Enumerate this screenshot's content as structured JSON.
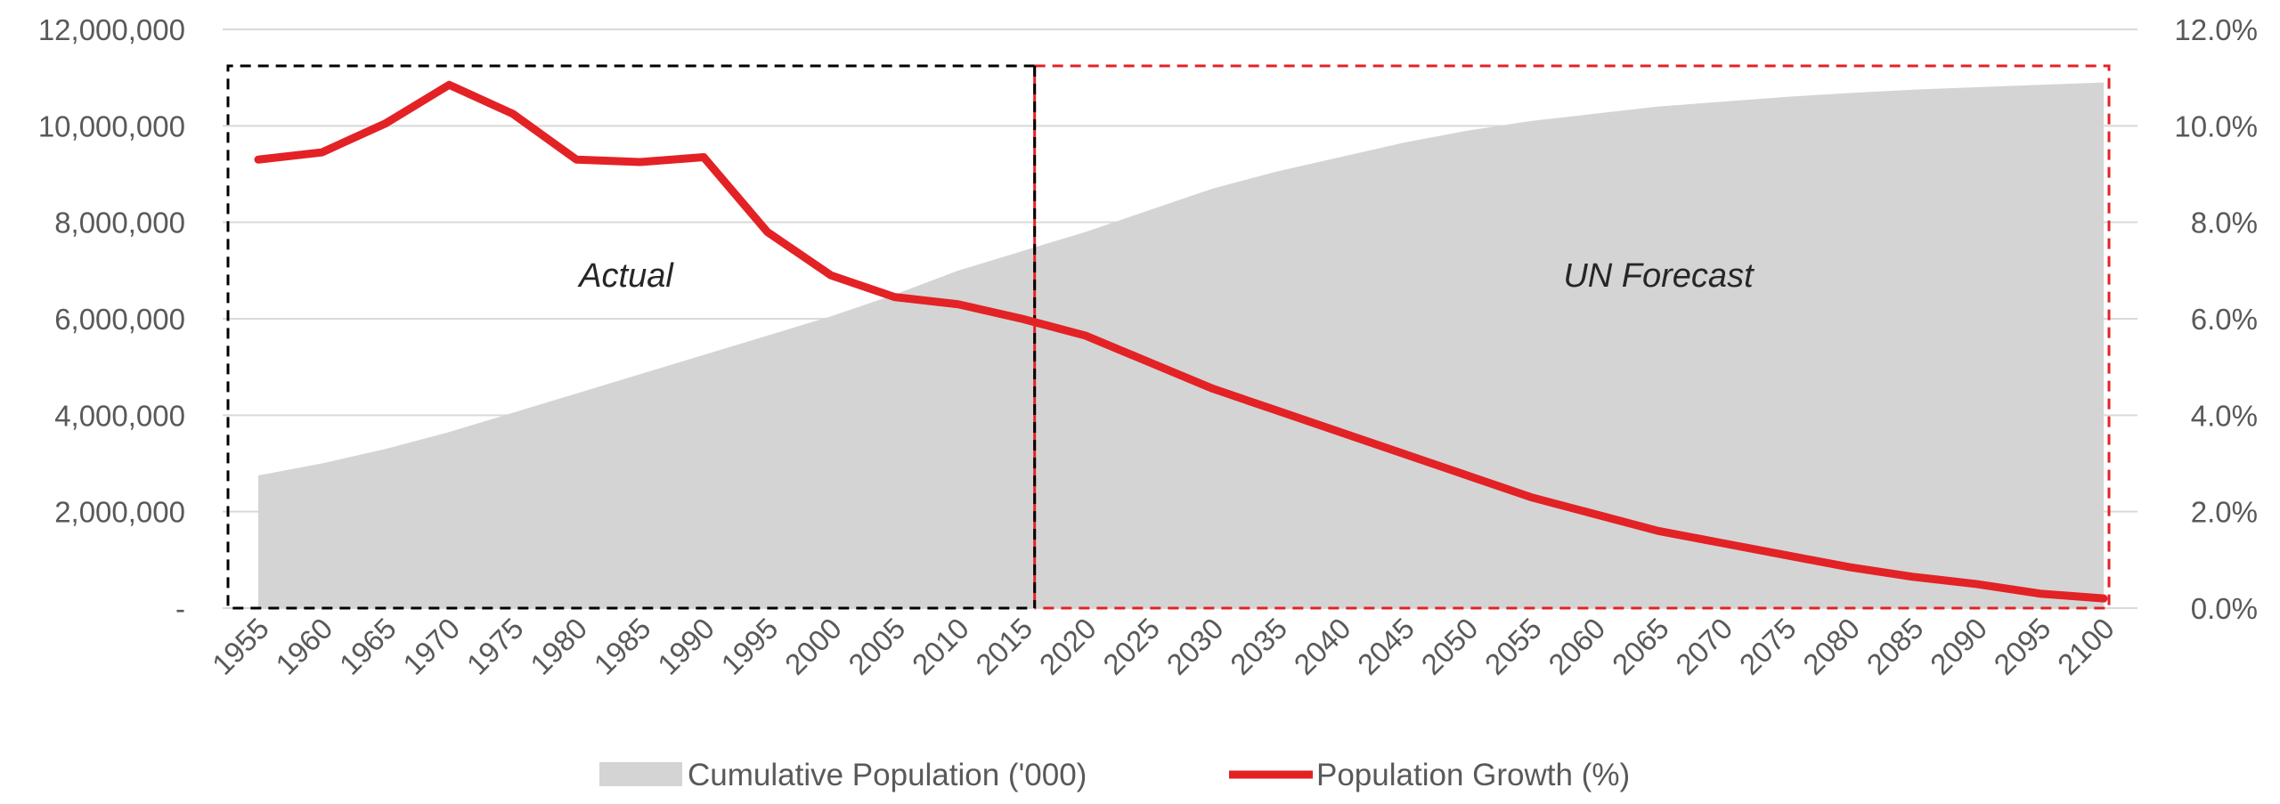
{
  "chart_data": {
    "type": "area",
    "title": "",
    "xlabel": "",
    "ylabel": "",
    "y2label": "",
    "x": [
      1955,
      1960,
      1965,
      1970,
      1975,
      1980,
      1985,
      1990,
      1995,
      2000,
      2005,
      2010,
      2015,
      2020,
      2025,
      2030,
      2035,
      2040,
      2045,
      2050,
      2055,
      2060,
      2065,
      2070,
      2075,
      2080,
      2085,
      2090,
      2095,
      2100
    ],
    "x_tick_labels": [
      "1955",
      "1960",
      "1965",
      "1970",
      "1975",
      "1980",
      "1985",
      "1990",
      "1995",
      "2000",
      "2005",
      "2010",
      "2015",
      "2020",
      "2025",
      "2030",
      "2035",
      "2040",
      "2045",
      "2050",
      "2055",
      "2060",
      "2065",
      "2070",
      "2075",
      "2080",
      "2085",
      "2090",
      "2095",
      "2100"
    ],
    "xlim": [
      1955,
      2100
    ],
    "ylim": [
      0,
      12000000
    ],
    "y2lim": [
      0,
      12
    ],
    "y_tick_labels": [
      "-",
      "2,000,000",
      "4,000,000",
      "6,000,000",
      "8,000,000",
      "10,000,000",
      "12,000,000"
    ],
    "y_tick_values": [
      0,
      2000000,
      4000000,
      6000000,
      8000000,
      10000000,
      12000000
    ],
    "y2_tick_labels": [
      "0.0%",
      "2.0%",
      "4.0%",
      "6.0%",
      "8.0%",
      "10.0%",
      "12.0%"
    ],
    "y2_tick_values": [
      0,
      2,
      4,
      6,
      8,
      10,
      12
    ],
    "grid": true,
    "legend_position": "bottom-center",
    "series": [
      {
        "name": "Cumulative Population ('000)",
        "type": "area",
        "axis": "left",
        "color": "#d4d4d4",
        "values": [
          2750000,
          3000000,
          3300000,
          3650000,
          4050000,
          4450000,
          4850000,
          5250000,
          5650000,
          6050000,
          6500000,
          7000000,
          7400000,
          7800000,
          8250000,
          8700000,
          9050000,
          9350000,
          9650000,
          9900000,
          10100000,
          10250000,
          10400000,
          10500000,
          10600000,
          10680000,
          10750000,
          10800000,
          10850000,
          10900000
        ]
      },
      {
        "name": "Population Growth (%)",
        "type": "line",
        "axis": "right",
        "color": "#e32226",
        "values": [
          9.3,
          9.45,
          10.05,
          10.85,
          10.25,
          9.3,
          9.25,
          9.35,
          7.8,
          6.9,
          6.45,
          6.3,
          6.0,
          5.65,
          5.1,
          4.55,
          4.1,
          3.65,
          3.2,
          2.75,
          2.3,
          1.95,
          1.6,
          1.35,
          1.1,
          0.85,
          0.65,
          0.5,
          0.3,
          0.2
        ]
      }
    ],
    "annotations": [
      {
        "text": "Actual",
        "x_range": [
          1955,
          2016
        ],
        "box_color": "#000000",
        "box_style": "dashed"
      },
      {
        "text": "UN Forecast",
        "x_range": [
          2016,
          2100
        ],
        "box_color": "#e32226",
        "box_style": "dashed"
      }
    ],
    "divider_year": 2016
  }
}
